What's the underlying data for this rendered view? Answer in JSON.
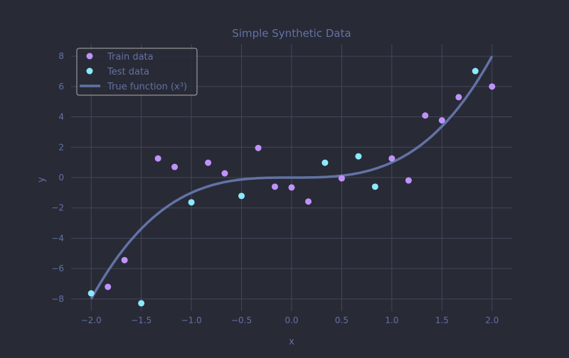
{
  "chart_data": {
    "type": "scatter",
    "title": "Simple Synthetic Data",
    "xlabel": "x",
    "ylabel": "y",
    "xlim": [
      -2.2,
      2.2
    ],
    "ylim": [
      -8.8,
      8.8
    ],
    "xticks": [
      -2.0,
      -1.5,
      -1.0,
      -0.5,
      0.0,
      0.5,
      1.0,
      1.5,
      2.0
    ],
    "xtick_labels": [
      "−2.0",
      "−1.5",
      "−1.0",
      "−0.5",
      "0.0",
      "0.5",
      "1.0",
      "1.5",
      "2.0"
    ],
    "yticks": [
      -8,
      -6,
      -4,
      -2,
      0,
      2,
      4,
      6,
      8
    ],
    "ytick_labels": [
      "−8",
      "−6",
      "−4",
      "−2",
      "0",
      "2",
      "4",
      "6",
      "8"
    ],
    "grid": true,
    "legend_position": "top-left",
    "colors": {
      "background": "#282a36",
      "train": "#bd93f9",
      "test": "#8be9fd",
      "line": "#6272a4",
      "grid": "#44475a",
      "text": "#6272a4"
    },
    "series": [
      {
        "name": "Train data",
        "kind": "scatter",
        "x": [
          -1.833,
          -1.667,
          -1.333,
          -1.167,
          -0.833,
          -0.667,
          -0.333,
          -0.167,
          0.0,
          0.167,
          0.5,
          1.0,
          1.167,
          1.333,
          1.5,
          1.667,
          2.0
        ],
        "y": [
          -7.2,
          -5.44,
          1.26,
          0.7,
          0.98,
          0.28,
          1.95,
          -0.6,
          -0.65,
          -1.58,
          -0.05,
          1.26,
          -0.19,
          4.09,
          3.77,
          5.3,
          6.0
        ]
      },
      {
        "name": "Test data",
        "kind": "scatter",
        "x": [
          -2.0,
          -1.5,
          -1.0,
          -0.5,
          0.333,
          0.667,
          0.833,
          1.833
        ],
        "y": [
          -7.63,
          -8.28,
          -1.63,
          -1.21,
          0.98,
          1.4,
          -0.6,
          7.02
        ]
      },
      {
        "name": "True function (x³)",
        "kind": "line",
        "function": "x^3",
        "x_range": [
          -2,
          2
        ]
      }
    ]
  }
}
